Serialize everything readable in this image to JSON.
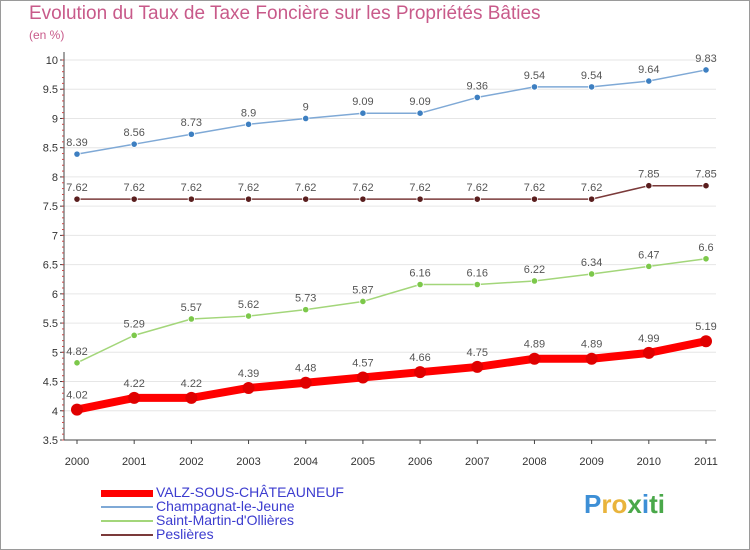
{
  "chart_data": {
    "type": "line",
    "title": "Evolution du Taux de Taxe Foncière sur les Propriétés Bâties",
    "unit_label": "(en %)",
    "ylim": [
      3.5,
      10
    ],
    "yticks": [
      "3.5",
      "4",
      "4.5",
      "5",
      "5.5",
      "6",
      "6.5",
      "7",
      "7.5",
      "8",
      "8.5",
      "9",
      "9.5",
      "10"
    ],
    "categories": [
      "2000",
      "2001",
      "2002",
      "2003",
      "2004",
      "2005",
      "2006",
      "2007",
      "2008",
      "2009",
      "2010",
      "2011"
    ],
    "series": [
      {
        "name": "VALZ-SOUS-CHÂTEAUNEUF",
        "color": "#ff0000",
        "marker_color": "#e00000",
        "bold": true,
        "values": [
          4.02,
          4.22,
          4.22,
          4.39,
          4.48,
          4.57,
          4.66,
          4.75,
          4.89,
          4.89,
          4.99,
          5.19
        ],
        "labels": [
          "4.02",
          "4.22",
          "4.22",
          "4.39",
          "4.48",
          "4.57",
          "4.66",
          "4.75",
          "4.89",
          "4.89",
          "4.99",
          "5.19"
        ]
      },
      {
        "name": "Champagnat-le-Jeune",
        "color": "#7fa9d6",
        "marker_color": "#3d7fc1",
        "bold": false,
        "values": [
          8.39,
          8.56,
          8.73,
          8.9,
          9,
          9.09,
          9.09,
          9.36,
          9.54,
          9.54,
          9.64,
          9.83
        ],
        "labels": [
          "8.39",
          "8.56",
          "8.73",
          "8.9",
          "9",
          "9.09",
          "9.09",
          "9.36",
          "9.54",
          "9.54",
          "9.64",
          "9.83"
        ]
      },
      {
        "name": "Saint-Martin-d'Ollières",
        "color": "#a3d67a",
        "marker_color": "#7cc84a",
        "bold": false,
        "values": [
          4.82,
          5.29,
          5.57,
          5.62,
          5.73,
          5.87,
          6.16,
          6.16,
          6.22,
          6.34,
          6.47,
          6.6
        ],
        "labels": [
          "4.82",
          "5.29",
          "5.57",
          "5.62",
          "5.73",
          "5.87",
          "6.16",
          "6.16",
          "6.22",
          "6.34",
          "6.47",
          "6.6"
        ]
      },
      {
        "name": "Peslières",
        "color": "#7b3a3a",
        "marker_color": "#5a1e1e",
        "bold": false,
        "values": [
          7.62,
          7.62,
          7.62,
          7.62,
          7.62,
          7.62,
          7.62,
          7.62,
          7.62,
          7.62,
          7.85,
          7.85
        ],
        "labels": [
          "7.62",
          "7.62",
          "7.62",
          "7.62",
          "7.62",
          "7.62",
          "7.62",
          "7.62",
          "7.62",
          "7.62",
          "7.85",
          "7.85"
        ]
      }
    ],
    "legend_position": "bottom-left"
  },
  "logo": {
    "letters": [
      "P",
      "r",
      "o",
      "x",
      "i",
      "t",
      "i"
    ]
  }
}
